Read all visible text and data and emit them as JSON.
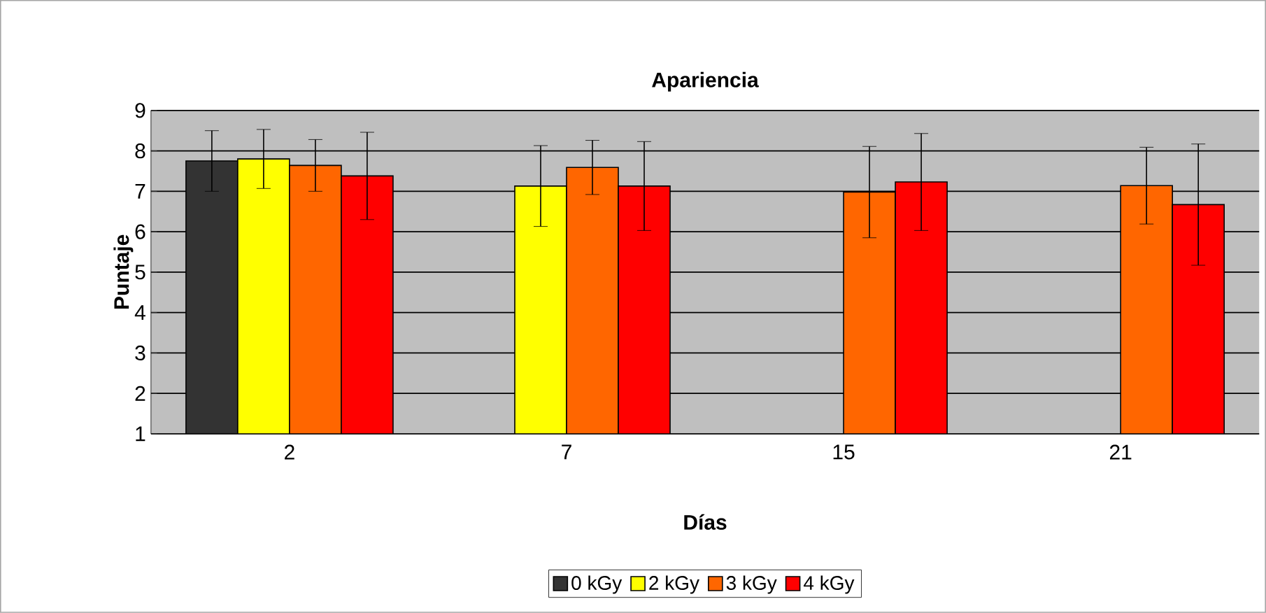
{
  "chart_data": {
    "type": "bar",
    "title": "Apariencia",
    "xlabel": "Días",
    "ylabel": "Puntaje",
    "categories": [
      "2",
      "7",
      "15",
      "21"
    ],
    "series": [
      {
        "name": "0 kGy",
        "color": "#333333",
        "values": [
          7.75,
          null,
          null,
          null
        ],
        "errors": [
          0.75,
          null,
          null,
          null
        ]
      },
      {
        "name": "2 kGy",
        "color": "#ffff00",
        "values": [
          7.8,
          7.13,
          null,
          null
        ],
        "errors": [
          0.73,
          1.0,
          null,
          null
        ]
      },
      {
        "name": "3 kGy",
        "color": "#ff6600",
        "values": [
          7.64,
          7.59,
          6.98,
          7.14
        ],
        "errors": [
          0.64,
          0.67,
          1.13,
          0.95
        ]
      },
      {
        "name": "4 kGy",
        "color": "#ff0000",
        "values": [
          7.38,
          7.13,
          7.23,
          6.67
        ],
        "errors": [
          1.08,
          1.1,
          1.2,
          1.5
        ]
      }
    ],
    "ylim": [
      1,
      9
    ],
    "yticks": [
      1,
      2,
      3,
      4,
      5,
      6,
      7,
      8,
      9
    ],
    "grid": "y",
    "legend": "bottom"
  }
}
